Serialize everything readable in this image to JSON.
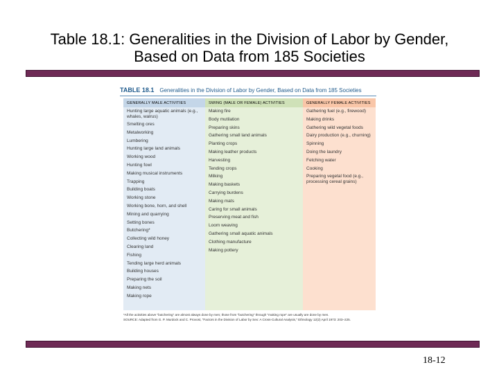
{
  "slide": {
    "title": "Table 18.1: Generalities in the Division of Labor by Gender, Based on Data from 185 Societies",
    "page_number": "18-12"
  },
  "table": {
    "label": "TABLE 18.1",
    "caption": "Generalities in the Division of Labor by Gender, Based on Data from 185 Societies",
    "columns": [
      {
        "header": "GENERALLY MALE ACTIVITIES",
        "items": [
          "Hunting large aquatic animals (e.g., whales, walrus)",
          "Smelting ores",
          "Metalworking",
          "Lumbering",
          "Hunting large land animals",
          "Working wood",
          "Hunting fowl",
          "Making musical instruments",
          "Trapping",
          "Building boats",
          "Working stone",
          "Working bone, horn, and shell",
          "Mining and quarrying",
          "Setting bones",
          "Butchering*",
          "Collecting wild honey",
          "Clearing land",
          "Fishing",
          "Tending large herd animals",
          "Building houses",
          "Preparing the soil",
          "Making nets",
          "Making rope"
        ]
      },
      {
        "header": "SWING (MALE OR FEMALE) ACTIVITIES",
        "items": [
          "Making fire",
          "Body mutilation",
          "Preparing skins",
          "Gathering small land animals",
          "Planting crops",
          "Making leather products",
          "Harvesting",
          "Tending crops",
          "Milking",
          "Making baskets",
          "Carrying burdens",
          "Making mats",
          "Caring for small animals",
          "Preserving meat and fish",
          "Loom weaving",
          "Gathering small aquatic animals",
          "Clothing manufacture",
          "Making pottery"
        ]
      },
      {
        "header": "GENERALLY FEMALE ACTIVITIES",
        "items": [
          "Gathering fuel (e.g., firewood)",
          "Making drinks",
          "Gathering wild vegetal foods",
          "Dairy production (e.g., churning)",
          "Spinning",
          "Doing the laundry",
          "Fetching water",
          "Cooking",
          "Preparing vegetal food (e.g., processing cereal grains)"
        ]
      }
    ],
    "footnote": "*All the activities above \"butchering\" are almost always done by men; those from \"butchering\" through \"making rope\" are usually are done by men.",
    "source": "SOURCE: Adapted from G. P. Murdock and C. Provost, \"Factors in the Division of Labor by Sex: A Cross-Cultural Analysis,\" Ethnology 12(2) April 1973: 203–225."
  }
}
